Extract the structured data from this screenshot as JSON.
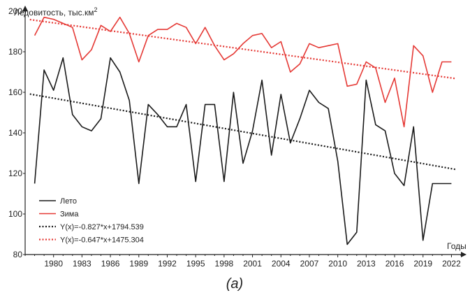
{
  "chart_data": {
    "type": "line",
    "ylabel": "Ледовитость, тыс.км",
    "ylabel_sup": "2",
    "xlabel": "Годы",
    "caption": "(a)",
    "xlim": [
      1977,
      2023
    ],
    "ylim": [
      80,
      200
    ],
    "x_ticks": [
      1980,
      1983,
      1986,
      1989,
      1992,
      1995,
      1998,
      2001,
      2004,
      2007,
      2010,
      2013,
      2016,
      2019,
      2022
    ],
    "y_ticks": [
      80,
      100,
      120,
      140,
      160,
      180,
      200
    ],
    "legend_position": "bottom-left",
    "grid": false,
    "x": [
      1978,
      1979,
      1980,
      1981,
      1982,
      1983,
      1984,
      1985,
      1986,
      1987,
      1988,
      1989,
      1990,
      1991,
      1992,
      1993,
      1994,
      1995,
      1996,
      1997,
      1998,
      1999,
      2000,
      2001,
      2002,
      2003,
      2004,
      2005,
      2006,
      2007,
      2008,
      2009,
      2010,
      2011,
      2012,
      2013,
      2014,
      2015,
      2016,
      2017,
      2018,
      2019,
      2020,
      2021,
      2022
    ],
    "series": [
      {
        "name": "Лето",
        "color": "#1a1a1a",
        "values": [
          115,
          171,
          161,
          177,
          149,
          143,
          141,
          147,
          177,
          170,
          156,
          115,
          154,
          149,
          143,
          143,
          154,
          116,
          154,
          154,
          116,
          160,
          125,
          141,
          166,
          129,
          159,
          135,
          147,
          161,
          155,
          152,
          126,
          85,
          91,
          166,
          144,
          141,
          120,
          114,
          143,
          87,
          115,
          115,
          115
        ]
      },
      {
        "name": "Зима",
        "color": "#e53935",
        "values": [
          188,
          197,
          196,
          194,
          192,
          176,
          181,
          193,
          190,
          197,
          189,
          175,
          188,
          191,
          191,
          194,
          192,
          184,
          192,
          183,
          176,
          179,
          184,
          188,
          189,
          182,
          185,
          170,
          174,
          184,
          182,
          183,
          184,
          163,
          164,
          175,
          172,
          155,
          167,
          143,
          183,
          178,
          160,
          175,
          175
        ]
      }
    ],
    "trendlines": [
      {
        "name": "Y(x)=-0.827*x+1794.539",
        "color": "#1a1a1a",
        "slope": -0.827,
        "intercept": 1794.539
      },
      {
        "name": "Y(x)=-0.647*x+1475.304",
        "color": "#e53935",
        "slope": -0.647,
        "intercept": 1475.304
      }
    ]
  }
}
